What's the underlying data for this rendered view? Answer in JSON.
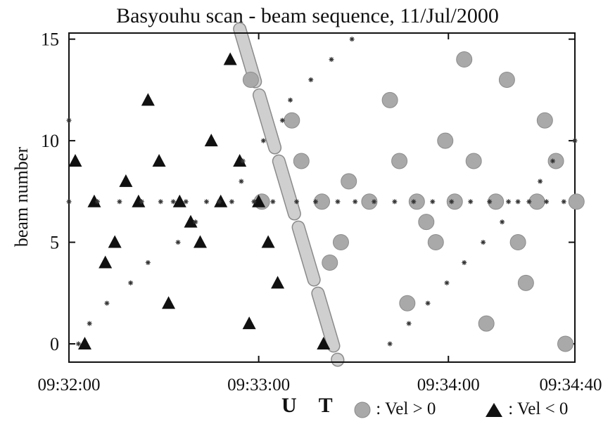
{
  "chart_data": {
    "type": "scatter",
    "title": "Basyouhu scan - beam sequence, 11/Jul/2000",
    "xlabel": "U T",
    "ylabel": "beam number",
    "x_unit": "seconds",
    "xlim": [
      0,
      160
    ],
    "ylim": [
      -0.9,
      15.3
    ],
    "x_ticks": [
      {
        "value": 0,
        "label": "09:32:00"
      },
      {
        "value": 60,
        "label": "09:33:00"
      },
      {
        "value": 120,
        "label": "09:34:00"
      },
      {
        "value": 160,
        "label": "09:34:40"
      }
    ],
    "y_ticks": [
      0,
      5,
      10,
      15
    ],
    "legend_placement": "bottom",
    "legend": [
      {
        "symbol": "circle",
        "label": ": Vel > 0"
      },
      {
        "symbol": "triangle",
        "label": ": Vel < 0"
      }
    ],
    "series": [
      {
        "name": "Vel > 0",
        "marker": "circle",
        "color": "#a9a9a9",
        "points": [
          [
            57.5,
            13
          ],
          [
            61,
            7
          ],
          [
            70.5,
            11
          ],
          [
            73.5,
            9
          ],
          [
            80,
            7
          ],
          [
            82.5,
            4
          ],
          [
            86,
            5
          ],
          [
            88.5,
            8
          ],
          [
            95,
            7
          ],
          [
            101.5,
            12
          ],
          [
            104.5,
            9
          ],
          [
            107,
            2
          ],
          [
            110,
            7
          ],
          [
            113,
            6
          ],
          [
            116,
            5
          ],
          [
            119,
            10
          ],
          [
            122,
            7
          ],
          [
            125,
            14
          ],
          [
            128,
            9
          ],
          [
            132,
            1
          ],
          [
            135,
            7
          ],
          [
            138.5,
            13
          ],
          [
            142,
            5
          ],
          [
            144.5,
            3
          ],
          [
            148,
            7
          ],
          [
            150.5,
            11
          ],
          [
            154,
            9
          ],
          [
            157,
            0
          ],
          [
            160.5,
            7
          ]
        ]
      },
      {
        "name": "Vel < 0",
        "marker": "triangle",
        "color": "#111111",
        "points": [
          [
            2,
            9
          ],
          [
            5,
            0
          ],
          [
            8,
            7
          ],
          [
            11.5,
            4
          ],
          [
            14.5,
            5
          ],
          [
            18,
            8
          ],
          [
            22,
            7
          ],
          [
            25,
            12
          ],
          [
            28.5,
            9
          ],
          [
            31.5,
            2
          ],
          [
            35,
            7
          ],
          [
            38.5,
            6
          ],
          [
            41.5,
            5
          ],
          [
            45,
            10
          ],
          [
            48,
            7
          ],
          [
            51,
            14
          ],
          [
            54,
            9
          ],
          [
            57,
            1
          ],
          [
            60,
            7
          ],
          [
            63,
            5
          ],
          [
            66,
            3
          ],
          [
            80.5,
            0
          ]
        ]
      },
      {
        "name": "beam sequence",
        "marker": "star",
        "color": "#333333",
        "points": [
          [
            0,
            11
          ],
          [
            0,
            7
          ],
          [
            3,
            0
          ],
          [
            6.5,
            1
          ],
          [
            9,
            7
          ],
          [
            12,
            2
          ],
          [
            16,
            7
          ],
          [
            19.5,
            3
          ],
          [
            23,
            7
          ],
          [
            25,
            4
          ],
          [
            29,
            7
          ],
          [
            33,
            7
          ],
          [
            34.5,
            5
          ],
          [
            37,
            7
          ],
          [
            40,
            6
          ],
          [
            43.5,
            7
          ],
          [
            47.5,
            7
          ],
          [
            51.5,
            7
          ],
          [
            54.5,
            8
          ],
          [
            55,
            9
          ],
          [
            58.5,
            7
          ],
          [
            61.5,
            10
          ],
          [
            64.5,
            7
          ],
          [
            67.5,
            11
          ],
          [
            70,
            12
          ],
          [
            72,
            7
          ],
          [
            76.5,
            13
          ],
          [
            78,
            7
          ],
          [
            83,
            14
          ],
          [
            85,
            7
          ],
          [
            89.5,
            15
          ],
          [
            90.5,
            7
          ],
          [
            96.5,
            7
          ],
          [
            101.5,
            0
          ],
          [
            103,
            7
          ],
          [
            107.5,
            1
          ],
          [
            109,
            7
          ],
          [
            113.5,
            2
          ],
          [
            115,
            7
          ],
          [
            119.5,
            3
          ],
          [
            121,
            7
          ],
          [
            125,
            4
          ],
          [
            127,
            7
          ],
          [
            131,
            5
          ],
          [
            133,
            7
          ],
          [
            137,
            6
          ],
          [
            139,
            7
          ],
          [
            142,
            7
          ],
          [
            145.5,
            7
          ],
          [
            149,
            8
          ],
          [
            151,
            7
          ],
          [
            153,
            9
          ],
          [
            156.5,
            7
          ],
          [
            160,
            10
          ]
        ]
      }
    ],
    "annotations": [
      {
        "type": "dashed-band",
        "description": "gray dashed diagonal band",
        "from": [
          54,
          15.5
        ],
        "to": [
          85,
          -0.8
        ]
      }
    ]
  }
}
